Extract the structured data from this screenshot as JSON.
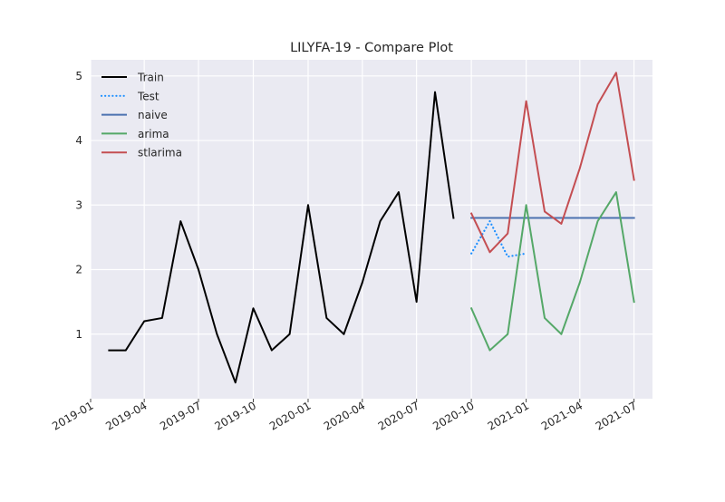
{
  "chart_data": {
    "type": "line",
    "title": "LILYFA-19 - Compare Plot",
    "xlabel": "",
    "ylabel": "",
    "xlim": [
      "2019-01-01",
      "2021-08-01"
    ],
    "ylim": [
      0,
      5.25
    ],
    "x_ticks": [
      "2019-01",
      "2019-04",
      "2019-07",
      "2019-10",
      "2020-01",
      "2020-04",
      "2020-07",
      "2020-10",
      "2021-01",
      "2021-04",
      "2021-07"
    ],
    "y_ticks": [
      1,
      2,
      3,
      4,
      5
    ],
    "grid": true,
    "legend_position": "top-left",
    "background_color": "#eaeaf2",
    "series": [
      {
        "name": "Train",
        "color": "#000000",
        "style": "solid",
        "x": [
          "2019-02-01",
          "2019-03-01",
          "2019-04-01",
          "2019-05-01",
          "2019-06-01",
          "2019-07-01",
          "2019-08-01",
          "2019-09-01",
          "2019-10-01",
          "2019-11-01",
          "2019-12-01",
          "2020-01-01",
          "2020-02-01",
          "2020-03-01",
          "2020-04-01",
          "2020-05-01",
          "2020-06-01",
          "2020-07-01",
          "2020-08-01",
          "2020-09-01"
        ],
        "values": [
          0.75,
          0.75,
          1.2,
          1.25,
          2.75,
          2.0,
          1.0,
          0.25,
          1.4,
          0.75,
          1.0,
          3.0,
          1.25,
          1.0,
          1.8,
          2.75,
          3.2,
          1.5,
          4.75,
          2.8
        ]
      },
      {
        "name": "Test",
        "color": "#1e90ff",
        "style": "dotted",
        "x": [
          "2020-10-01",
          "2020-11-01",
          "2020-12-01",
          "2021-01-01"
        ],
        "values": [
          2.25,
          2.75,
          2.2,
          2.25
        ]
      },
      {
        "name": "naive",
        "color": "#4c72b0",
        "style": "solid",
        "x": [
          "2020-10-01",
          "2020-11-01",
          "2020-12-01",
          "2021-01-01",
          "2021-02-01",
          "2021-03-01",
          "2021-04-01",
          "2021-05-01",
          "2021-06-01",
          "2021-07-01"
        ],
        "values": [
          2.8,
          2.8,
          2.8,
          2.8,
          2.8,
          2.8,
          2.8,
          2.8,
          2.8,
          2.8
        ]
      },
      {
        "name": "arima",
        "color": "#55a868",
        "style": "solid",
        "x": [
          "2020-10-01",
          "2020-11-01",
          "2020-12-01",
          "2021-01-01",
          "2021-02-01",
          "2021-03-01",
          "2021-04-01",
          "2021-05-01",
          "2021-06-01",
          "2021-07-01"
        ],
        "values": [
          1.4,
          0.75,
          1.0,
          3.0,
          1.25,
          1.0,
          1.8,
          2.75,
          3.2,
          1.5
        ]
      },
      {
        "name": "stlarima",
        "color": "#c44e52",
        "style": "solid",
        "x": [
          "2020-10-01",
          "2020-11-01",
          "2020-12-01",
          "2021-01-01",
          "2021-02-01",
          "2021-03-01",
          "2021-04-01",
          "2021-05-01",
          "2021-06-01",
          "2021-07-01"
        ],
        "values": [
          2.87,
          2.27,
          2.56,
          4.61,
          2.9,
          2.71,
          3.57,
          4.56,
          5.05,
          3.39
        ]
      }
    ]
  }
}
